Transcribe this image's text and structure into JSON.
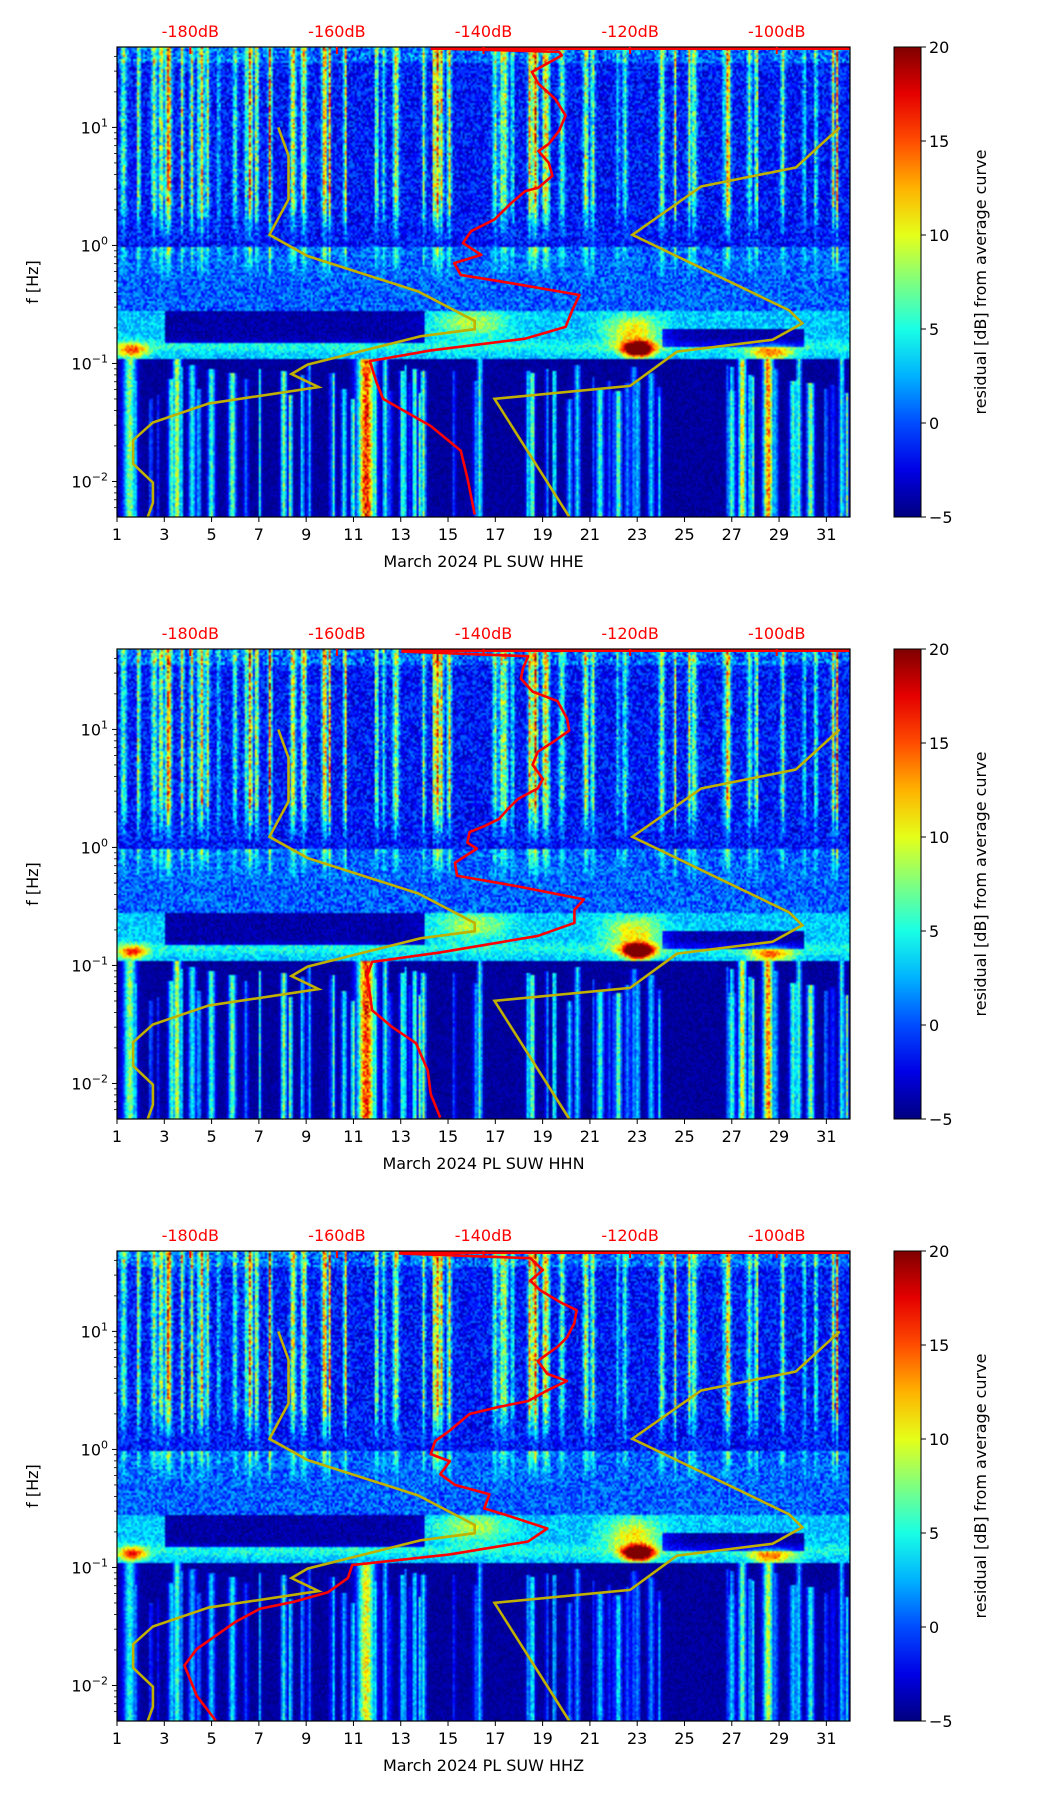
{
  "noise_models": {
    "color": "#c0b000",
    "low_noise_model": [
      [
        -168.0,
        1.0
      ],
      [
        -166.6,
        0.76
      ],
      [
        -166.6,
        0.39
      ],
      [
        -169.2,
        0.09
      ],
      [
        -164.0,
        -0.09
      ],
      [
        -148.9,
        -0.39
      ],
      [
        -141.2,
        -0.64
      ],
      [
        -141.2,
        -0.71
      ],
      [
        -148.6,
        -0.77
      ],
      [
        -164.0,
        -1.01
      ],
      [
        -166.2,
        -1.09
      ],
      [
        -162.5,
        -1.2
      ],
      [
        -177.5,
        -1.34
      ],
      [
        -185.1,
        -1.5
      ],
      [
        -187.8,
        -1.65
      ],
      [
        -187.8,
        -1.85
      ],
      [
        -185.1,
        -2.01
      ],
      [
        -185.1,
        -2.18
      ],
      [
        -185.8,
        -2.3
      ]
    ],
    "high_noise_model": [
      [
        -91.4,
        1.0
      ],
      [
        -97.4,
        0.66
      ],
      [
        -110.3,
        0.5
      ],
      [
        -119.7,
        0.09
      ],
      [
        -98.3,
        -0.55
      ],
      [
        -96.5,
        -0.66
      ],
      [
        -100.6,
        -0.8
      ],
      [
        -113.6,
        -0.9
      ],
      [
        -120.0,
        -1.19
      ],
      [
        -138.5,
        -1.3
      ],
      [
        -128.3,
        -2.3
      ]
    ]
  },
  "colors": {
    "curve": "#ff0000",
    "top_axis_text": "#ff0000"
  },
  "chart_data": [
    {
      "type": "heatmap",
      "xlabel": "March 2024 PL SUW  HHE",
      "ylabel": "f [Hz]",
      "xlim": [
        1,
        32
      ],
      "ylim": [
        0.005,
        48
      ],
      "yscale": "log",
      "x_ticks": [
        1,
        3,
        5,
        7,
        9,
        11,
        13,
        15,
        17,
        19,
        21,
        23,
        25,
        27,
        29,
        31
      ],
      "y_ticks": [
        {
          "base": "10",
          "exp": "−2",
          "value": -2
        },
        {
          "base": "10",
          "exp": "−1",
          "value": -1
        },
        {
          "base": "10",
          "exp": "0",
          "value": 0
        },
        {
          "base": "10",
          "exp": "1",
          "value": 1
        }
      ],
      "top_axis": {
        "range_dB": [
          -190,
          -90
        ],
        "values": [
          -180,
          -160,
          -140,
          -120,
          -100
        ],
        "labels": [
          "-180dB",
          "-160dB",
          "-140dB",
          "-120dB",
          "-100dB"
        ]
      },
      "colorbar": {
        "label": "residual [dB] from average curve",
        "range": [
          -5,
          20
        ],
        "ticks": [
          "−5",
          "0",
          "5",
          "10",
          "15",
          "20"
        ],
        "colormap": "jet"
      },
      "median_curve_dB_log10f": [
        [
          -147.2,
          1.67
        ],
        [
          -129.7,
          1.64
        ],
        [
          -129.3,
          1.61
        ],
        [
          -133.4,
          1.47
        ],
        [
          -132.5,
          1.37
        ],
        [
          -130.2,
          1.24
        ],
        [
          -128.8,
          1.1
        ],
        [
          -129.7,
          0.97
        ],
        [
          -131.1,
          0.86
        ],
        [
          -132.5,
          0.8
        ],
        [
          -131.1,
          0.7
        ],
        [
          -130.6,
          0.59
        ],
        [
          -132.5,
          0.49
        ],
        [
          -134.3,
          0.46
        ],
        [
          -136.2,
          0.36
        ],
        [
          -138.5,
          0.22
        ],
        [
          -141.7,
          0.12
        ],
        [
          -142.8,
          0.02
        ],
        [
          -140.3,
          -0.08
        ],
        [
          -144.0,
          -0.15
        ],
        [
          -143.1,
          -0.25
        ],
        [
          -136.2,
          -0.32
        ],
        [
          -126.9,
          -0.42
        ],
        [
          -127.9,
          -0.55
        ],
        [
          -128.8,
          -0.69
        ],
        [
          -134.3,
          -0.79
        ],
        [
          -147.2,
          -0.89
        ],
        [
          -155.5,
          -0.98
        ],
        [
          -154.6,
          -1.16
        ],
        [
          -153.7,
          -1.3
        ],
        [
          -147.2,
          -1.53
        ],
        [
          -143.1,
          -1.74
        ],
        [
          -142.2,
          -1.97
        ],
        [
          -141.2,
          -2.28
        ]
      ]
    },
    {
      "type": "heatmap",
      "xlabel": "March 2024 PL SUW  HHN",
      "ylabel": "f [Hz]",
      "xlim": [
        1,
        32
      ],
      "ylim": [
        0.005,
        48
      ],
      "yscale": "log",
      "x_ticks": [
        1,
        3,
        5,
        7,
        9,
        11,
        13,
        15,
        17,
        19,
        21,
        23,
        25,
        27,
        29,
        31
      ],
      "y_ticks": [
        {
          "base": "10",
          "exp": "−2",
          "value": -2
        },
        {
          "base": "10",
          "exp": "−1",
          "value": -1
        },
        {
          "base": "10",
          "exp": "0",
          "value": 0
        },
        {
          "base": "10",
          "exp": "1",
          "value": 1
        }
      ],
      "top_axis": {
        "range_dB": [
          -190,
          -90
        ],
        "values": [
          -180,
          -160,
          -140,
          -120,
          -100
        ],
        "labels": [
          "-180dB",
          "-160dB",
          "-140dB",
          "-120dB",
          "-100dB"
        ]
      },
      "colorbar": {
        "label": "residual [dB] from average curve",
        "range": [
          -5,
          20
        ],
        "ticks": [
          "−5",
          "0",
          "5",
          "10",
          "15",
          "20"
        ],
        "colormap": "jet"
      },
      "median_curve_dB_log10f": [
        [
          -151.2,
          1.66
        ],
        [
          -133.9,
          1.62
        ],
        [
          -134.6,
          1.52
        ],
        [
          -134.9,
          1.43
        ],
        [
          -133.3,
          1.32
        ],
        [
          -129.9,
          1.24
        ],
        [
          -128.6,
          1.09
        ],
        [
          -128.3,
          0.99
        ],
        [
          -130.6,
          0.89
        ],
        [
          -132.6,
          0.81
        ],
        [
          -133.3,
          0.7
        ],
        [
          -131.9,
          0.58
        ],
        [
          -132.6,
          0.5
        ],
        [
          -135.3,
          0.41
        ],
        [
          -136.6,
          0.33
        ],
        [
          -137.9,
          0.24
        ],
        [
          -139.9,
          0.18
        ],
        [
          -141.9,
          0.13
        ],
        [
          -142.2,
          0.04
        ],
        [
          -140.9,
          -0.01
        ],
        [
          -143.9,
          -0.13
        ],
        [
          -143.6,
          -0.24
        ],
        [
          -135.3,
          -0.33
        ],
        [
          -126.3,
          -0.44
        ],
        [
          -127.6,
          -0.53
        ],
        [
          -127.6,
          -0.64
        ],
        [
          -132.6,
          -0.75
        ],
        [
          -145.9,
          -0.89
        ],
        [
          -155.2,
          -0.97
        ],
        [
          -155.9,
          -1.09
        ],
        [
          -155.5,
          -1.24
        ],
        [
          -155.2,
          -1.38
        ],
        [
          -152.5,
          -1.52
        ],
        [
          -149.2,
          -1.66
        ],
        [
          -147.6,
          -1.89
        ],
        [
          -147.2,
          -2.09
        ],
        [
          -145.9,
          -2.29
        ]
      ]
    },
    {
      "type": "heatmap",
      "xlabel": "March 2024 PL SUW  HHZ",
      "ylabel": "f [Hz]",
      "xlim": [
        1,
        32
      ],
      "ylim": [
        0.005,
        48
      ],
      "yscale": "log",
      "x_ticks": [
        1,
        3,
        5,
        7,
        9,
        11,
        13,
        15,
        17,
        19,
        21,
        23,
        25,
        27,
        29,
        31
      ],
      "y_ticks": [
        {
          "base": "10",
          "exp": "−2",
          "value": -2
        },
        {
          "base": "10",
          "exp": "−1",
          "value": -1
        },
        {
          "base": "10",
          "exp": "0",
          "value": 0
        },
        {
          "base": "10",
          "exp": "1",
          "value": 1
        }
      ],
      "top_axis": {
        "range_dB": [
          -190,
          -90
        ],
        "values": [
          -180,
          -160,
          -140,
          -120,
          -100
        ],
        "labels": [
          "-180dB",
          "-160dB",
          "-140dB",
          "-120dB",
          "-100dB"
        ]
      },
      "colorbar": {
        "label": "residual [dB] from average curve",
        "range": [
          -5,
          20
        ],
        "ticks": [
          "−5",
          "0",
          "5",
          "10",
          "15",
          "20"
        ],
        "colormap": "jet"
      },
      "median_curve_dB_log10f": [
        [
          -151.5,
          1.66
        ],
        [
          -133.6,
          1.62
        ],
        [
          -131.9,
          1.52
        ],
        [
          -133.6,
          1.43
        ],
        [
          -132.3,
          1.35
        ],
        [
          -129.3,
          1.24
        ],
        [
          -127.3,
          1.18
        ],
        [
          -127.6,
          1.07
        ],
        [
          -128.6,
          0.95
        ],
        [
          -129.9,
          0.87
        ],
        [
          -132.6,
          0.75
        ],
        [
          -131.3,
          0.64
        ],
        [
          -128.6,
          0.58
        ],
        [
          -131.3,
          0.5
        ],
        [
          -133.9,
          0.41
        ],
        [
          -137.9,
          0.36
        ],
        [
          -141.9,
          0.3
        ],
        [
          -144.6,
          0.16
        ],
        [
          -146.6,
          0.07
        ],
        [
          -147.2,
          -0.04
        ],
        [
          -144.6,
          -0.1
        ],
        [
          -145.9,
          -0.21
        ],
        [
          -143.9,
          -0.3
        ],
        [
          -139.2,
          -0.38
        ],
        [
          -139.9,
          -0.5
        ],
        [
          -137.2,
          -0.55
        ],
        [
          -131.3,
          -0.67
        ],
        [
          -133.9,
          -0.78
        ],
        [
          -144.6,
          -0.89
        ],
        [
          -157.9,
          -0.98
        ],
        [
          -158.5,
          -1.09
        ],
        [
          -161.2,
          -1.21
        ],
        [
          -165.8,
          -1.29
        ],
        [
          -170.5,
          -1.35
        ],
        [
          -173.8,
          -1.46
        ],
        [
          -179.1,
          -1.69
        ],
        [
          -180.8,
          -1.83
        ],
        [
          -179.1,
          -2.09
        ],
        [
          -176.5,
          -2.3
        ]
      ]
    }
  ]
}
